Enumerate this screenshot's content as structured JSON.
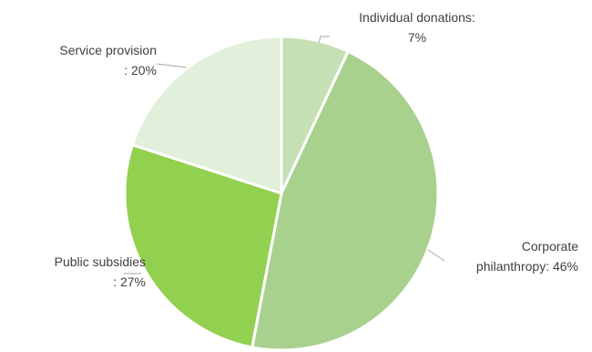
{
  "chart_data": {
    "type": "pie",
    "title": "",
    "legend": "none",
    "slices": [
      {
        "category": "Individual donations",
        "value": 7,
        "label_lines": [
          "Individual donations:",
          "7%"
        ],
        "color": "#c5e0b4"
      },
      {
        "category": "Corporate philanthropy",
        "value": 46,
        "label_lines": [
          "Corporate",
          "philanthropy: 46%"
        ],
        "color": "#a9d18e"
      },
      {
        "category": "Public subsidies",
        "value": 27,
        "label_lines": [
          "Public subsidies",
          ": 27%"
        ],
        "color": "#92d050"
      },
      {
        "category": "Service provision",
        "value": 20,
        "label_lines": [
          "Service provision",
          ": 20%"
        ],
        "color": "#e2efda"
      }
    ]
  }
}
